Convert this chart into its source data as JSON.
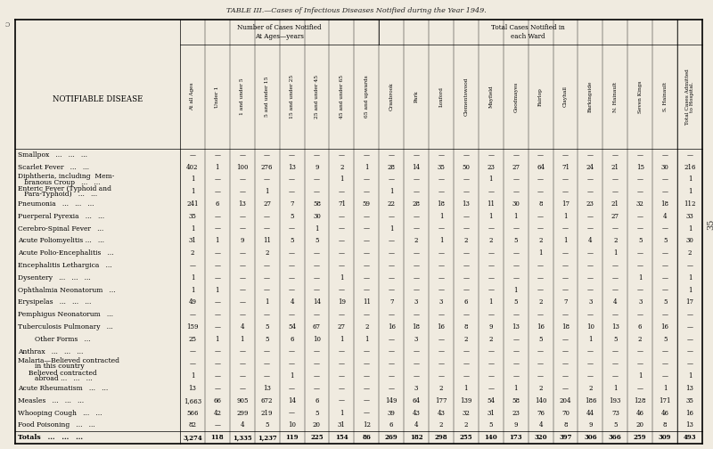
{
  "title": "TABLE III.—Cases of Infectious Diseases Notified during the Year 1949.",
  "bg_color": "#f0ebe0",
  "page_number": "35",
  "col_headers_rotated": [
    "At all Ages",
    "Under 1",
    "1 and under 5",
    "5 and under 15",
    "15 and under 25",
    "25 and under 45",
    "45 and under 65",
    "65 and upwards",
    "Cranbrook",
    "Park",
    "Loxford",
    "Clementswood",
    "Mayfield",
    "Goodmayes",
    "Fairlop",
    "Clayhall",
    "Barkingside",
    "N. Hainault",
    "Seven Kings",
    "S. Hainault",
    "Total Cases Admitted\nto Hospital."
  ],
  "row_labels": [
    [
      "Smallpox",
      "   ...   ...   ..."
    ],
    [
      "Scarlet Fever",
      "   ...   ..."
    ],
    [
      "Diphtheria, including  Mem-",
      "   branous Croup   ...   ..."
    ],
    [
      "Enteric Fever (Typhoid and",
      "   Para-Typhoid)   ...   ..."
    ],
    [
      "Pneumonia",
      "   ...   ...   ..."
    ],
    [
      "Puerperal Pyrexia",
      "   ...   ..."
    ],
    [
      "Cerebro-Spinal Fever",
      "   ..."
    ],
    [
      "Acute Poliomyelitis ...",
      "   ..."
    ],
    [
      "Acute Polio-Encephalitis",
      "   ..."
    ],
    [
      "Encephalitis Lethargica",
      "   ..."
    ],
    [
      "Dysentery",
      "   ...   ...   ..."
    ],
    [
      "Ophthalmia Neonatorum",
      "   ..."
    ],
    [
      "Erysipelas",
      "   ...   ...   ..."
    ],
    [
      "Pemphigus Neonatorum",
      "   ..."
    ],
    [
      "Tuberculosis Pulmonary",
      "   ..."
    ],
    [
      "        Other Forms",
      "   ..."
    ],
    [
      "Anthrax",
      "   ...   ...   ..."
    ],
    [
      "Malaria—Believed contracted",
      "        in this country"
    ],
    [
      "     Believed contracted",
      "        abroad ...   ...   ..."
    ],
    [
      "Acute Rheumatism",
      "   ...   ..."
    ],
    [
      "Measles",
      "   ...   ...   ..."
    ],
    [
      "Whooping Cough",
      "   ...   ..."
    ],
    [
      "Food Poisoning",
      "   ...   ..."
    ],
    [
      "Totals",
      "   ...   ...   ..."
    ]
  ],
  "table_data": [
    [
      "—",
      "—",
      "—",
      "—",
      "—",
      "—",
      "—",
      "—",
      "—",
      "—",
      "—",
      "—",
      "—",
      "—",
      "—",
      "—",
      "—",
      "—",
      "—",
      "—",
      "—"
    ],
    [
      "402",
      "1",
      "100",
      "276",
      "13",
      "9",
      "2",
      "1",
      "28",
      "14",
      "35",
      "50",
      "23",
      "27",
      "64",
      "71",
      "24",
      "21",
      "15",
      "30",
      "216"
    ],
    [
      "1",
      "—",
      "—",
      "—",
      "—",
      "—",
      "1",
      "—",
      "—",
      "—",
      "—",
      "—",
      "1",
      "—",
      "—",
      "—",
      "—",
      "—",
      "—",
      "—",
      "1"
    ],
    [
      "1",
      "—",
      "—",
      "1",
      "—",
      "—",
      "—",
      "—",
      "1",
      "—",
      "—",
      "—",
      "—",
      "—",
      "—",
      "—",
      "—",
      "—",
      "—",
      "—",
      "1"
    ],
    [
      "241",
      "6",
      "13",
      "27",
      "7",
      "58",
      "71",
      "59",
      "22",
      "28",
      "18",
      "13",
      "11",
      "30",
      "8",
      "17",
      "23",
      "21",
      "32",
      "18",
      "112"
    ],
    [
      "35",
      "—",
      "—",
      "—",
      "5",
      "30",
      "—",
      "—",
      "—",
      "—",
      "1",
      "—",
      "1",
      "1",
      "—",
      "1",
      "—",
      "27",
      "—",
      "4",
      "33"
    ],
    [
      "1",
      "—",
      "—",
      "—",
      "—",
      "1",
      "—",
      "—",
      "1",
      "—",
      "—",
      "—",
      "—",
      "—",
      "—",
      "—",
      "—",
      "—",
      "—",
      "—",
      "1"
    ],
    [
      "31",
      "1",
      "9",
      "11",
      "5",
      "5",
      "—",
      "—",
      "—",
      "2",
      "1",
      "2",
      "2",
      "5",
      "2",
      "1",
      "4",
      "2",
      "5",
      "5",
      "30"
    ],
    [
      "2",
      "—",
      "—",
      "2",
      "—",
      "—",
      "—",
      "—",
      "—",
      "—",
      "—",
      "—",
      "—",
      "—",
      "1",
      "—",
      "—",
      "1",
      "—",
      "—",
      "2"
    ],
    [
      "—",
      "—",
      "—",
      "—",
      "—",
      "—",
      "—",
      "—",
      "—",
      "—",
      "—",
      "—",
      "—",
      "—",
      "—",
      "—",
      "—",
      "—",
      "—",
      "—",
      "—"
    ],
    [
      "1",
      "—",
      "—",
      "—",
      "—",
      "—",
      "1",
      "—",
      "—",
      "—",
      "—",
      "—",
      "—",
      "—",
      "—",
      "—",
      "—",
      "—",
      "1",
      "—",
      "1"
    ],
    [
      "1",
      "1",
      "—",
      "—",
      "—",
      "—",
      "—",
      "—",
      "—",
      "—",
      "—",
      "—",
      "—",
      "1",
      "—",
      "—",
      "—",
      "—",
      "—",
      "—",
      "1"
    ],
    [
      "49",
      "—",
      "—",
      "1",
      "4",
      "14",
      "19",
      "11",
      "7",
      "3",
      "3",
      "6",
      "1",
      "5",
      "2",
      "7",
      "3",
      "4",
      "3",
      "5",
      "17"
    ],
    [
      "—",
      "—",
      "—",
      "—",
      "—",
      "—",
      "—",
      "—",
      "—",
      "—",
      "—",
      "—",
      "—",
      "—",
      "—",
      "—",
      "—",
      "—",
      "—",
      "—",
      "—"
    ],
    [
      "159",
      "—",
      "4",
      "5",
      "54",
      "67",
      "27",
      "2",
      "16",
      "18",
      "16",
      "8",
      "9",
      "13",
      "16",
      "18",
      "10",
      "13",
      "6",
      "16",
      "—"
    ],
    [
      "25",
      "1",
      "1",
      "5",
      "6",
      "10",
      "1",
      "1",
      "—",
      "3",
      "—",
      "2",
      "2",
      "—",
      "5",
      "—",
      "1",
      "5",
      "2",
      "5",
      "—"
    ],
    [
      "—",
      "—",
      "—",
      "—",
      "—",
      "—",
      "—",
      "—",
      "—",
      "—",
      "—",
      "—",
      "—",
      "—",
      "—",
      "—",
      "—",
      "—",
      "—",
      "—",
      "—"
    ],
    [
      "—",
      "—",
      "—",
      "—",
      "—",
      "—",
      "—",
      "—",
      "—",
      "—",
      "—",
      "—",
      "—",
      "—",
      "—",
      "—",
      "—",
      "—",
      "—",
      "—",
      "—"
    ],
    [
      "1",
      "—",
      "—",
      "—",
      "1",
      "—",
      "—",
      "—",
      "—",
      "—",
      "—",
      "—",
      "—",
      "—",
      "—",
      "—",
      "—",
      "—",
      "1",
      "—",
      "1"
    ],
    [
      "13",
      "—",
      "—",
      "13",
      "—",
      "—",
      "—",
      "—",
      "—",
      "3",
      "2",
      "1",
      "—",
      "1",
      "2",
      "—",
      "2",
      "1",
      "—",
      "1",
      "13"
    ],
    [
      "1,663",
      "66",
      "905",
      "672",
      "14",
      "6",
      "—",
      "—",
      "149",
      "64",
      "177",
      "139",
      "54",
      "58",
      "140",
      "204",
      "186",
      "193",
      "128",
      "171",
      "35"
    ],
    [
      "566",
      "42",
      "299",
      "219",
      "—",
      "5",
      "1",
      "—",
      "39",
      "43",
      "43",
      "32",
      "31",
      "23",
      "76",
      "70",
      "44",
      "73",
      "46",
      "46",
      "16"
    ],
    [
      "82",
      "—",
      "4",
      "5",
      "10",
      "20",
      "31",
      "12",
      "6",
      "4",
      "2",
      "2",
      "5",
      "9",
      "4",
      "8",
      "9",
      "5",
      "20",
      "8",
      "13"
    ],
    [
      "3,274",
      "118",
      "1,335",
      "1,237",
      "119",
      "225",
      "154",
      "86",
      "269",
      "182",
      "298",
      "255",
      "140",
      "173",
      "320",
      "397",
      "306",
      "366",
      "259",
      "309",
      "493"
    ]
  ]
}
